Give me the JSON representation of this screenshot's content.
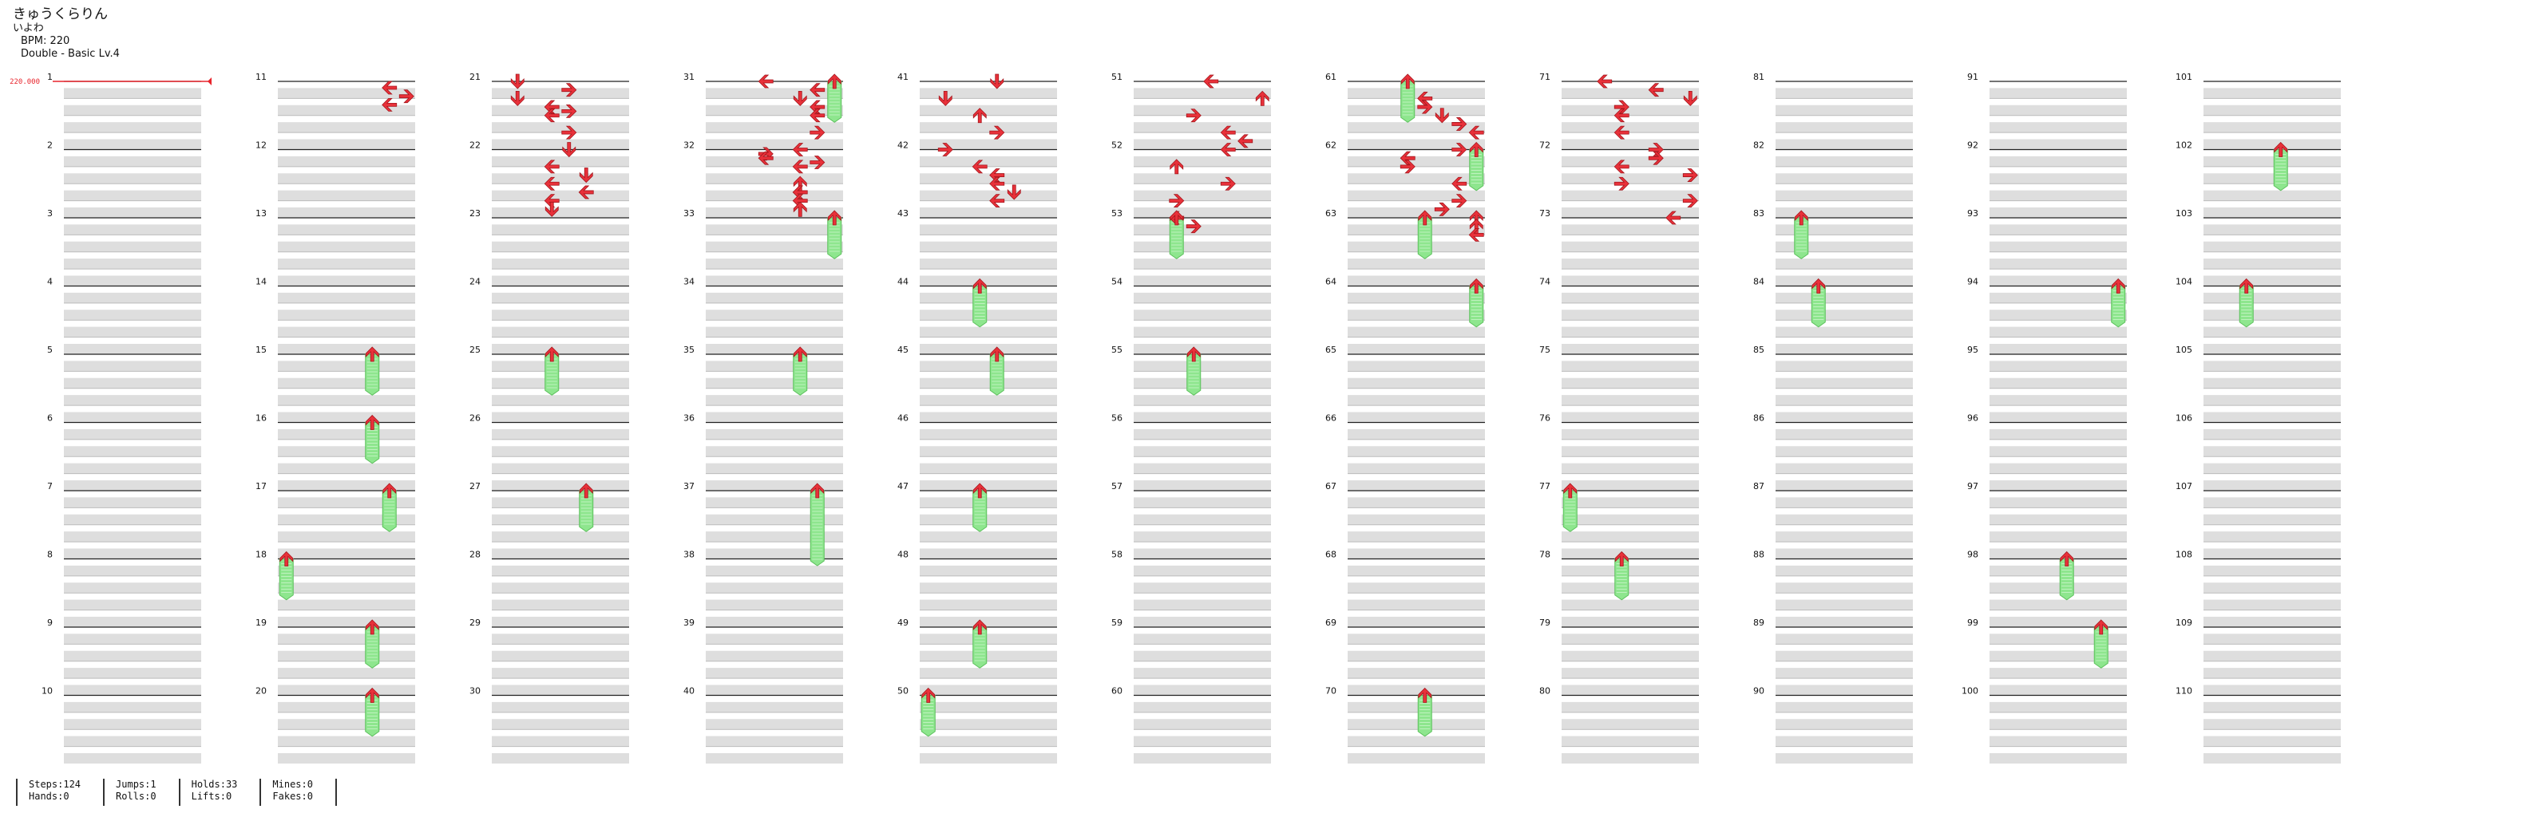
{
  "song": {
    "title": "きゅうくらりん",
    "artist": "いよわ",
    "bpm_label": "BPM: 220",
    "chart_label": "Double - Basic  Lv.4"
  },
  "bpm_marker": {
    "measure": 1,
    "label": "220.000",
    "color": "#e8232b"
  },
  "colors": {
    "arrow": "#e8313a",
    "hold": "#8ee68e",
    "lane": "#dedede",
    "line": "#222222"
  },
  "lanes": 8,
  "measure_count": 110,
  "notes": [
    [
      11,
      0.375,
      6,
      "L"
    ],
    [
      11,
      0.875,
      7,
      "R"
    ],
    [
      11,
      1.375,
      6,
      "L"
    ],
    [
      21,
      0,
      1,
      "D"
    ],
    [
      21,
      0.5,
      4,
      "R"
    ],
    [
      21,
      1,
      1,
      "D"
    ],
    [
      21,
      1.5,
      3,
      "L"
    ],
    [
      21,
      1.75,
      4,
      "R"
    ],
    [
      21,
      2,
      3,
      "L"
    ],
    [
      21,
      3,
      4,
      "R"
    ],
    [
      21,
      4,
      4,
      "D"
    ],
    [
      21,
      5,
      3,
      "L"
    ],
    [
      21,
      5.5,
      5,
      "D"
    ],
    [
      21,
      6,
      3,
      "L"
    ],
    [
      21,
      6.5,
      5,
      "L"
    ],
    [
      21,
      7,
      3,
      "L"
    ],
    [
      21,
      7.5,
      3,
      "D"
    ],
    [
      31,
      0,
      3,
      "L"
    ],
    [
      31,
      0.5,
      6,
      "L"
    ],
    [
      31,
      1,
      5,
      "D"
    ],
    [
      31,
      1.5,
      6,
      "L"
    ],
    [
      31,
      2,
      6,
      "L"
    ],
    [
      31,
      3,
      6,
      "R"
    ],
    [
      31,
      4,
      5,
      "L"
    ],
    [
      31,
      4.25,
      3,
      "R"
    ],
    [
      31,
      4.5,
      3,
      "L"
    ],
    [
      31,
      4.75,
      6,
      "R"
    ],
    [
      31,
      5,
      5,
      "L"
    ],
    [
      31,
      6,
      5,
      "U"
    ],
    [
      31,
      6.5,
      5,
      "L"
    ],
    [
      31,
      7,
      5,
      "L"
    ],
    [
      31,
      7.5,
      5,
      "U"
    ],
    [
      41,
      0,
      4,
      "D"
    ],
    [
      41,
      1,
      1,
      "D"
    ],
    [
      41,
      2,
      3,
      "U"
    ],
    [
      41,
      3,
      4,
      "R"
    ],
    [
      41,
      4,
      1,
      "R"
    ],
    [
      41,
      5,
      3,
      "L"
    ],
    [
      41,
      5.5,
      4,
      "L"
    ],
    [
      41,
      6,
      4,
      "L"
    ],
    [
      41,
      6.5,
      5,
      "D"
    ],
    [
      41,
      7,
      4,
      "L"
    ],
    [
      51,
      0,
      4,
      "L"
    ],
    [
      51,
      1,
      7,
      "U"
    ],
    [
      51,
      2,
      3,
      "R"
    ],
    [
      51,
      3,
      5,
      "L"
    ],
    [
      51,
      3.5,
      6,
      "L"
    ],
    [
      51,
      4,
      5,
      "L"
    ],
    [
      51,
      5,
      2,
      "U"
    ],
    [
      51,
      6,
      5,
      "R"
    ],
    [
      51,
      7,
      2,
      "R"
    ],
    [
      51,
      8,
      2,
      "L"
    ],
    [
      51,
      8.5,
      3,
      "R"
    ],
    [
      61,
      1,
      4,
      "L"
    ],
    [
      61,
      1.5,
      4,
      "R"
    ],
    [
      61,
      2,
      5,
      "D"
    ],
    [
      61,
      2.5,
      6,
      "R"
    ],
    [
      61,
      3,
      7,
      "L"
    ],
    [
      61,
      4,
      6,
      "R"
    ],
    [
      61,
      4.5,
      3,
      "L"
    ],
    [
      61,
      5,
      3,
      "R"
    ],
    [
      61,
      6,
      6,
      "L"
    ],
    [
      61,
      7,
      6,
      "R"
    ],
    [
      61,
      7.5,
      5,
      "R"
    ],
    [
      61,
      8,
      7,
      "U"
    ],
    [
      61,
      8.5,
      7,
      "U"
    ],
    [
      61,
      9,
      7,
      "L"
    ],
    [
      71,
      0,
      2,
      "L"
    ],
    [
      71,
      0.5,
      5,
      "L"
    ],
    [
      71,
      1,
      7,
      "D"
    ],
    [
      71,
      1.5,
      3,
      "R"
    ],
    [
      71,
      2,
      3,
      "L"
    ],
    [
      71,
      3,
      3,
      "L"
    ],
    [
      71,
      4,
      5,
      "R"
    ],
    [
      71,
      4.5,
      5,
      "R"
    ],
    [
      71,
      5,
      3,
      "L"
    ],
    [
      71,
      5.5,
      7,
      "R"
    ],
    [
      71,
      6,
      3,
      "R"
    ],
    [
      71,
      7,
      7,
      "R"
    ],
    [
      71,
      8,
      6,
      "L"
    ]
  ],
  "holds": [
    [
      15,
      0,
      5,
      0.6
    ],
    [
      16,
      0,
      5,
      0.6
    ],
    [
      17,
      0,
      6,
      0.6
    ],
    [
      18,
      0,
      0,
      0.6
    ],
    [
      19,
      0,
      5,
      0.6
    ],
    [
      20,
      0,
      5,
      0.6
    ],
    [
      25,
      0,
      3,
      0.6
    ],
    [
      27,
      0,
      5,
      0.6
    ],
    [
      31,
      0,
      7,
      0.6
    ],
    [
      33,
      0,
      7,
      0.6
    ],
    [
      35,
      0,
      5,
      0.6
    ],
    [
      37,
      0,
      6,
      1.1
    ],
    [
      44,
      0,
      3,
      0.6
    ],
    [
      45,
      0,
      4,
      0.6
    ],
    [
      47,
      0,
      3,
      0.6
    ],
    [
      49,
      0,
      3,
      0.6
    ],
    [
      50,
      0,
      0,
      0.6
    ],
    [
      53,
      0,
      2,
      0.6
    ],
    [
      55,
      0,
      3,
      0.6
    ],
    [
      61,
      0,
      3,
      0.6
    ],
    [
      62,
      0,
      7,
      0.6
    ],
    [
      63,
      0,
      4,
      0.6
    ],
    [
      64,
      0,
      7,
      0.6
    ],
    [
      70,
      0,
      4,
      0.6
    ],
    [
      77,
      0,
      0,
      0.6
    ],
    [
      78,
      0,
      3,
      0.6
    ],
    [
      83,
      0,
      1,
      0.6
    ],
    [
      84,
      0,
      2,
      0.6
    ],
    [
      94,
      0,
      7,
      0.6
    ],
    [
      98,
      0,
      4,
      0.6
    ],
    [
      99,
      0,
      6,
      0.6
    ],
    [
      102,
      0,
      4,
      0.6
    ],
    [
      104,
      0,
      2,
      0.6
    ]
  ],
  "stats": {
    "steps": "Steps:124",
    "hands": "Hands:0",
    "jumps": "Jumps:1",
    "rolls": "Rolls:0",
    "holds": "Holds:33",
    "lifts": "Lifts:0",
    "mines": "Mines:0",
    "fakes": "Fakes:0"
  }
}
